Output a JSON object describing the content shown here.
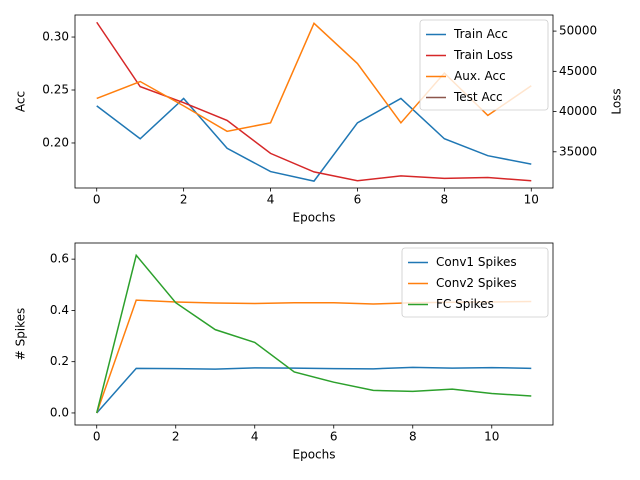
{
  "chart_data": [
    {
      "type": "line",
      "x": [
        0,
        1,
        2,
        3,
        4,
        5,
        6,
        7,
        8,
        9,
        10
      ],
      "xlabel": "Epochs",
      "ylabel": "Acc",
      "y2label": "Loss",
      "xlim": [
        -0.5,
        10.5
      ],
      "xticks": [
        0,
        2,
        4,
        6,
        8,
        10
      ],
      "ylim": [
        0.1575,
        0.3208
      ],
      "yticks": [
        {
          "value": 0.2,
          "label": "0.20"
        },
        0.25,
        {
          "value": 0.3,
          "label": "0.30"
        }
      ],
      "y2lim": [
        30500,
        52000
      ],
      "y2ticks": [
        35000,
        40000,
        45000,
        50000
      ],
      "legend": "upper right",
      "series": [
        {
          "name": "Train Acc",
          "color": "#1f77b4",
          "values": [
            0.235,
            0.204,
            0.242,
            0.195,
            0.173,
            0.164,
            0.219,
            0.242,
            0.204,
            0.188,
            0.18
          ]
        },
        {
          "name": "Train Loss",
          "color": "#d62728",
          "axis": "y2",
          "values": [
            51100,
            43100,
            41100,
            38900,
            34800,
            32500,
            31400,
            32000,
            31700,
            31800,
            31400
          ]
        },
        {
          "name": "Aux. Acc",
          "color": "#ff7f0e",
          "values": [
            0.242,
            0.258,
            0.235,
            0.211,
            0.219,
            0.313,
            0.275,
            0.219,
            0.266,
            0.226,
            0.254
          ]
        },
        {
          "name": "Test Acc",
          "color": "#8c564b",
          "values": [
            null,
            null,
            null,
            null,
            null,
            null,
            null,
            null,
            null,
            null,
            null
          ]
        }
      ]
    },
    {
      "type": "line",
      "x": [
        0,
        1,
        2,
        3,
        4,
        5,
        6,
        7,
        8,
        9,
        10,
        11
      ],
      "xlabel": "Epochs",
      "ylabel": "# Spikes",
      "xlim": [
        -0.55,
        11.55
      ],
      "xticks": [
        0,
        2,
        4,
        6,
        8,
        10
      ],
      "ylim": [
        -0.047,
        0.663
      ],
      "yticks": [
        {
          "value": 0,
          "label": "0.0"
        },
        0.2,
        0.4,
        0.6
      ],
      "legend": "upper right",
      "series": [
        {
          "name": "Conv1 Spikes",
          "color": "#1f77b4",
          "values": [
            0,
            0.174,
            0.173,
            0.171,
            0.176,
            0.175,
            0.173,
            0.172,
            0.178,
            0.175,
            0.177,
            0.174
          ]
        },
        {
          "name": "Conv2 Spikes",
          "color": "#ff7f0e",
          "values": [
            0,
            0.44,
            0.433,
            0.429,
            0.427,
            0.43,
            0.43,
            0.425,
            0.43,
            0.432,
            0.433,
            0.435
          ]
        },
        {
          "name": "FC Spikes",
          "color": "#2ca02c",
          "values": [
            0,
            0.615,
            0.43,
            0.325,
            0.275,
            0.16,
            0.12,
            0.088,
            0.084,
            0.093,
            0.076,
            0.066
          ]
        }
      ]
    }
  ]
}
